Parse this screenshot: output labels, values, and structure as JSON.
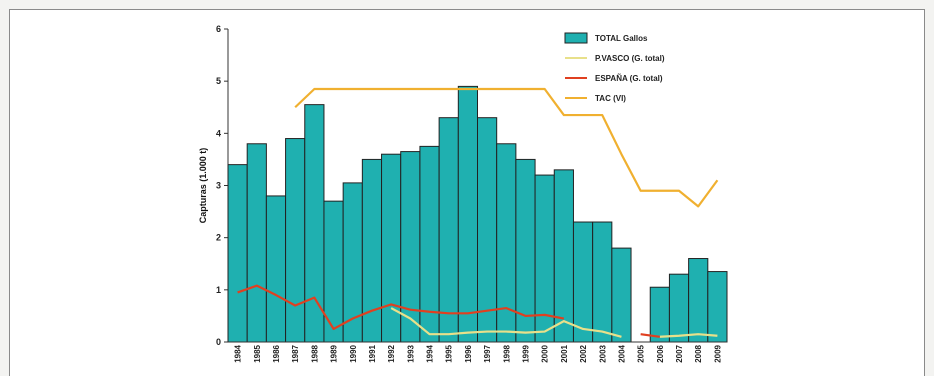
{
  "chart_data": {
    "type": "bar",
    "ylabel": "Capturas (1.000 t)",
    "ylim": [
      0,
      6
    ],
    "yticks": [
      0,
      1,
      2,
      3,
      4,
      5,
      6
    ],
    "categories": [
      "1984",
      "1985",
      "1986",
      "1987",
      "1988",
      "1989",
      "1990",
      "1991",
      "1992",
      "1993",
      "1994",
      "1995",
      "1996",
      "1997",
      "1998",
      "1999",
      "2000",
      "2001",
      "2002",
      "2003",
      "2004",
      "2005",
      "2006",
      "2007",
      "2008",
      "2009"
    ],
    "legend_position": "top-right",
    "series": [
      {
        "name": "TOTAL Gallos",
        "kind": "bar",
        "color": "#1fb0b0",
        "values": [
          3.4,
          3.8,
          2.8,
          3.9,
          4.55,
          2.7,
          3.05,
          3.5,
          3.6,
          3.65,
          3.75,
          4.3,
          4.9,
          4.3,
          3.8,
          3.5,
          3.2,
          3.3,
          2.3,
          2.3,
          1.8,
          null,
          1.05,
          1.3,
          1.6,
          1.35
        ]
      },
      {
        "name": "P.VASCO (G. total)",
        "kind": "line",
        "color": "#e8e08a",
        "values": [
          null,
          null,
          null,
          null,
          null,
          null,
          null,
          null,
          0.65,
          0.45,
          0.15,
          0.15,
          0.18,
          0.2,
          0.2,
          0.18,
          0.2,
          0.4,
          0.25,
          0.2,
          0.1,
          null,
          0.1,
          0.12,
          0.15,
          0.12
        ]
      },
      {
        "name": "ESPAÑA (G. total)",
        "kind": "line",
        "color": "#e04020",
        "values": [
          0.95,
          1.08,
          0.9,
          0.7,
          0.85,
          0.25,
          0.45,
          0.6,
          0.72,
          0.62,
          0.58,
          0.55,
          0.55,
          0.6,
          0.65,
          0.5,
          0.52,
          0.45,
          null,
          null,
          null,
          0.15,
          0.1,
          null,
          null,
          null
        ]
      },
      {
        "name": "TAC (VI)",
        "kind": "line",
        "color": "#f0b030",
        "values": [
          null,
          null,
          null,
          4.5,
          4.85,
          4.85,
          4.85,
          4.85,
          4.85,
          4.85,
          4.85,
          4.85,
          4.85,
          4.85,
          4.85,
          4.85,
          4.85,
          4.35,
          4.35,
          4.35,
          3.6,
          2.9,
          2.9,
          2.9,
          2.6,
          3.1
        ]
      }
    ]
  }
}
